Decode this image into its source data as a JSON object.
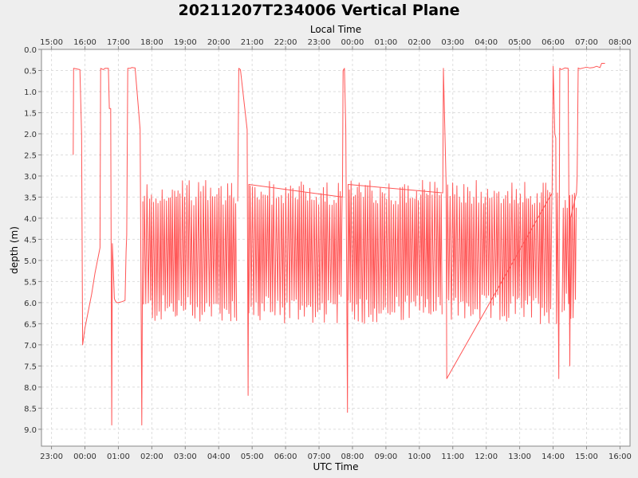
{
  "chart_data": {
    "type": "line",
    "title": "20211207T234006 Vertical Plane",
    "top_axis_label": "Local Time",
    "bottom_axis_label": "UTC Time",
    "ylabel": "depth (m)",
    "y_inverted": true,
    "ylim": [
      0.0,
      9.4
    ],
    "y_ticks": [
      "0.0",
      "0.5",
      "1.0",
      "1.5",
      "2.0",
      "2.5",
      "3.0",
      "3.5",
      "4.0",
      "4.5",
      "5.0",
      "5.5",
      "6.0",
      "6.5",
      "7.0",
      "7.5",
      "8.0",
      "8.5",
      "9.0"
    ],
    "x_unit": "hours since 23:00 UTC (Dec 7)",
    "xlim": [
      -0.3,
      17.3
    ],
    "utc_ticks": [
      "23:00",
      "00:00",
      "01:00",
      "02:00",
      "03:00",
      "04:00",
      "05:00",
      "06:00",
      "07:00",
      "08:00",
      "09:00",
      "10:00",
      "11:00",
      "12:00",
      "13:00",
      "14:00",
      "15:00",
      "16:00"
    ],
    "local_ticks": [
      "15:00",
      "16:00",
      "17:00",
      "18:00",
      "19:00",
      "20:00",
      "21:00",
      "22:00",
      "23:00",
      "00:00",
      "01:00",
      "02:00",
      "03:00",
      "04:00",
      "05:00",
      "06:00",
      "07:00",
      "08:00"
    ],
    "grid": true,
    "series_color": "#ff5555",
    "series": [
      {
        "name": "depth",
        "points": [
          [
            0.65,
            2.5
          ],
          [
            0.66,
            0.45
          ],
          [
            0.85,
            0.48
          ],
          [
            0.9,
            2.0
          ],
          [
            0.93,
            7.0
          ],
          [
            1.0,
            6.6
          ],
          [
            1.2,
            5.8
          ],
          [
            1.3,
            5.3
          ],
          [
            1.45,
            4.7
          ],
          [
            1.47,
            0.45
          ],
          [
            1.55,
            0.48
          ],
          [
            1.6,
            0.45
          ],
          [
            1.7,
            0.45
          ],
          [
            1.73,
            1.4
          ],
          [
            1.77,
            1.4
          ],
          [
            1.8,
            8.9
          ],
          [
            1.82,
            4.6
          ],
          [
            1.88,
            5.9
          ],
          [
            1.9,
            5.95
          ],
          [
            1.95,
            6.0
          ],
          [
            2.0,
            6.0
          ],
          [
            2.1,
            5.98
          ],
          [
            2.2,
            5.95
          ],
          [
            2.23,
            4.8
          ],
          [
            2.25,
            4.4
          ],
          [
            2.28,
            0.45
          ],
          [
            2.35,
            0.45
          ],
          [
            2.4,
            0.43
          ],
          [
            2.5,
            0.44
          ],
          [
            2.6,
            1.4
          ],
          [
            2.65,
            1.9
          ],
          [
            2.7,
            8.9
          ],
          [
            2.73,
            3.6
          ]
        ],
        "profiling_segments": [
          {
            "start": 2.75,
            "end": 5.57,
            "shallow": 3.1,
            "deep": 6.5
          },
          {
            "start": 5.9,
            "end": 8.7,
            "shallow": 3.1,
            "deep": 6.5
          },
          {
            "start": 8.87,
            "end": 11.7,
            "shallow": 3.1,
            "deep": 6.5
          },
          {
            "start": 11.82,
            "end": 14.97,
            "shallow": 3.1,
            "deep": 6.5
          },
          {
            "start": 15.27,
            "end": 15.7,
            "shallow": 3.4,
            "deep": 6.4
          }
        ],
        "transition_points": [
          [
            5.57,
            3.6
          ],
          [
            5.6,
            0.45
          ],
          [
            5.65,
            0.48
          ],
          [
            5.85,
            1.9
          ],
          [
            5.88,
            8.2
          ],
          [
            5.9,
            3.2
          ],
          [
            8.7,
            3.5
          ],
          [
            8.72,
            0.5
          ],
          [
            8.76,
            0.45
          ],
          [
            8.8,
            1.9
          ],
          [
            8.85,
            8.6
          ],
          [
            8.87,
            3.2
          ],
          [
            11.7,
            3.4
          ],
          [
            11.72,
            0.45
          ],
          [
            11.8,
            3.2
          ],
          [
            11.82,
            7.8
          ],
          [
            14.97,
            3.4
          ],
          [
            15.0,
            0.4
          ],
          [
            15.05,
            2.0
          ],
          [
            15.08,
            2.1
          ],
          [
            15.1,
            6.5
          ],
          [
            15.13,
            3.4
          ],
          [
            15.17,
            7.8
          ],
          [
            15.2,
            0.45
          ],
          [
            15.25,
            0.48
          ],
          [
            15.35,
            0.44
          ],
          [
            15.45,
            0.45
          ],
          [
            15.5,
            7.5
          ],
          [
            15.52,
            4.0
          ],
          [
            15.7,
            3.4
          ],
          [
            15.72,
            3.0
          ],
          [
            15.75,
            0.44
          ],
          [
            15.8,
            0.46
          ],
          [
            15.9,
            0.44
          ],
          [
            16.0,
            0.42
          ],
          [
            16.1,
            0.44
          ],
          [
            16.2,
            0.43
          ],
          [
            16.3,
            0.4
          ],
          [
            16.4,
            0.43
          ],
          [
            16.45,
            0.33
          ],
          [
            16.55,
            0.33
          ]
        ]
      }
    ]
  }
}
